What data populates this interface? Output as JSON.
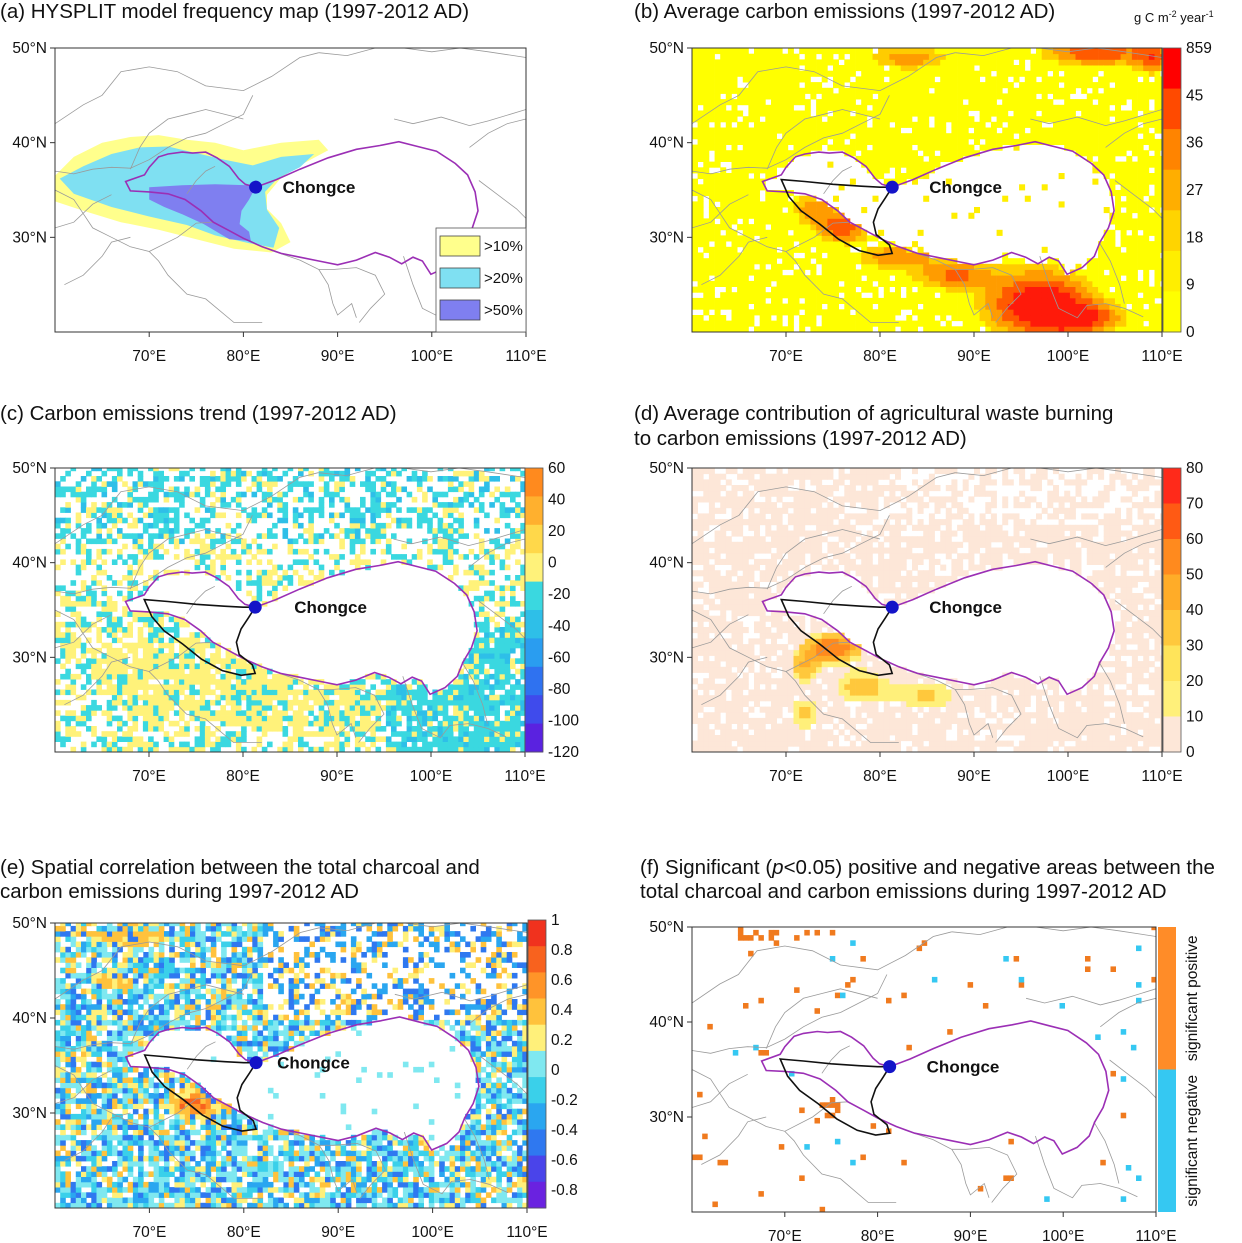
{
  "site_label": "Chongce",
  "axes": {
    "lat_ticks": [
      "50°N",
      "40°N",
      "30°N"
    ],
    "lon_ticks": [
      "70°E",
      "80°E",
      "90°E",
      "100°E",
      "110°E"
    ]
  },
  "panels": [
    {
      "id": "a",
      "title_lines": [
        "(a) HYSPLIT model frequency map (1997-2012 AD)"
      ],
      "legend": [
        {
          "label": ">10%",
          "color": "#ffff8c"
        },
        {
          "label": ">20%",
          "color": "#7fe0f2"
        },
        {
          "label": ">50%",
          "color": "#7f7ff0"
        }
      ]
    },
    {
      "id": "b",
      "title_lines": [
        "(b) Average carbon emissions (1997-2012 AD)"
      ],
      "unit_label": {
        "text": "g C m",
        "sup1": "-2",
        "mid": " year",
        "sup2": "-1"
      },
      "colorbar_ticks": [
        "859",
        "45",
        "36",
        "27",
        "18",
        "9",
        "0"
      ],
      "colorbar_colors": [
        "#ff0000",
        "#ff4a00",
        "#ff8400",
        "#ffae00",
        "#ffd400",
        "#ffee00",
        "#ffff00"
      ]
    },
    {
      "id": "c",
      "title_lines": [
        "(c) Carbon emissions trend (1997-2012 AD)"
      ],
      "colorbar_ticks": [
        "60",
        "40",
        "20",
        "0",
        "-20",
        "-40",
        "-60",
        "-80",
        "-100",
        "-120"
      ],
      "colorbar_colors": [
        "#ff8a1e",
        "#ffb02e",
        "#ffd84a",
        "#fff27a",
        "#3ad8e0",
        "#2ebfe8",
        "#2a9df0",
        "#2f72f0",
        "#3f4bec",
        "#5a22e0"
      ]
    },
    {
      "id": "d",
      "title_lines": [
        "(d) Average contribution of agricultural waste burning",
        "to carbon emissions (1997-2012 AD)"
      ],
      "colorbar_ticks": [
        "80",
        "70",
        "60",
        "50",
        "40",
        "30",
        "20",
        "10",
        "0"
      ],
      "colorbar_colors": [
        "#ff2a1a",
        "#ff5a14",
        "#ff8a1e",
        "#ffac28",
        "#ffc83c",
        "#ffe45a",
        "#fff07a",
        "#fde7d8"
      ]
    },
    {
      "id": "e",
      "title_lines": [
        "(e) Spatial correlation between the total charcoal and",
        "carbon emissions during 1997-2012 AD"
      ],
      "colorbar_ticks": [
        "1",
        "0.8",
        "0.6",
        "0.4",
        "0.2",
        "0",
        "-0.2",
        "-0.4",
        "-0.6",
        "-0.8"
      ],
      "colorbar_colors": [
        "#f0321e",
        "#f8621e",
        "#ff9428",
        "#ffc23c",
        "#fff07a",
        "#7fe8f0",
        "#3ad0ea",
        "#2aa6f0",
        "#2f78f0",
        "#4a44ea",
        "#6a22e0"
      ]
    },
    {
      "id": "f",
      "title_lines": [
        "(f) Significant (p<0.05) positive and negative areas between the",
        "total charcoal and carbon emissions during 1997-2012 AD"
      ],
      "bar_labels": [
        "significant positive",
        "significant negative"
      ],
      "bar_colors": [
        "#ff8c28",
        "#35c8f2"
      ]
    }
  ]
}
